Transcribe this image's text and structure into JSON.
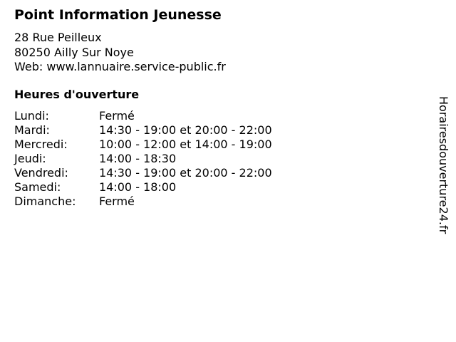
{
  "title": "Point Information Jeunesse",
  "address": {
    "street": "28 Rue Peilleux",
    "city": "80250 Ailly Sur Noye",
    "web": "Web: www.lannuaire.service-public.fr"
  },
  "hours_heading": "Heures d'ouverture",
  "hours": [
    {
      "day": "Lundi:",
      "time": "Fermé"
    },
    {
      "day": "Mardi:",
      "time": "14:30 - 19:00 et 20:00 - 22:00"
    },
    {
      "day": "Mercredi:",
      "time": "10:00 - 12:00 et 14:00 - 19:00"
    },
    {
      "day": "Jeudi:",
      "time": "14:00 - 18:30"
    },
    {
      "day": "Vendredi:",
      "time": "14:30 - 19:00 et 20:00 - 22:00"
    },
    {
      "day": "Samedi:",
      "time": "14:00 - 18:00"
    },
    {
      "day": "Dimanche:",
      "time": "Fermé"
    }
  ],
  "watermark": "Horairesdouverture24.fr"
}
